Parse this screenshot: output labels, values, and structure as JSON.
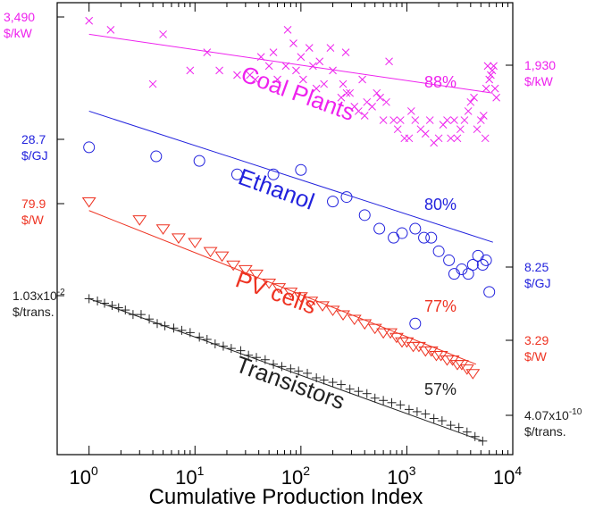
{
  "chart_data": {
    "type": "scatter",
    "title": "",
    "xlabel": "Cumulative Production Index",
    "ylabel": "",
    "x_scale": "log",
    "xlim": [
      0.5,
      10000
    ],
    "x_ticks": [
      {
        "base": "10",
        "exp": "0"
      },
      {
        "base": "10",
        "exp": "1"
      },
      {
        "base": "10",
        "exp": "2"
      },
      {
        "base": "10",
        "exp": "3"
      },
      {
        "base": "10",
        "exp": "4"
      }
    ],
    "series": [
      {
        "name": "Coal Plants",
        "marker": "x",
        "color": "#ee22ee",
        "progress_ratio": "88%",
        "start_label": [
          "3,490",
          "$/kW"
        ],
        "end_label": [
          "1,930",
          "$/kW"
        ],
        "fit": {
          "x": [
            1,
            6500
          ],
          "y_frac": [
            0.07,
            0.2
          ]
        },
        "points": [
          [
            1,
            0.04
          ],
          [
            1.6,
            0.06
          ],
          [
            5,
            0.07
          ],
          [
            4,
            0.18
          ],
          [
            9,
            0.15
          ],
          [
            13,
            0.11
          ],
          [
            17,
            0.15
          ],
          [
            25,
            0.16
          ],
          [
            33,
            0.16
          ],
          [
            37,
            0.17
          ],
          [
            42,
            0.12
          ],
          [
            50,
            0.14
          ],
          [
            55,
            0.11
          ],
          [
            60,
            0.17
          ],
          [
            72,
            0.14
          ],
          [
            75,
            0.06
          ],
          [
            85,
            0.09
          ],
          [
            90,
            0.15
          ],
          [
            100,
            0.12
          ],
          [
            105,
            0.17
          ],
          [
            120,
            0.1
          ],
          [
            130,
            0.14
          ],
          [
            140,
            0.19
          ],
          [
            150,
            0.13
          ],
          [
            165,
            0.18
          ],
          [
            190,
            0.1
          ],
          [
            200,
            0.15
          ],
          [
            240,
            0.21
          ],
          [
            250,
            0.18
          ],
          [
            265,
            0.11
          ],
          [
            270,
            0.2
          ],
          [
            290,
            0.2
          ],
          [
            320,
            0.23
          ],
          [
            350,
            0.24
          ],
          [
            380,
            0.17
          ],
          [
            400,
            0.25
          ],
          [
            420,
            0.22
          ],
          [
            470,
            0.23
          ],
          [
            520,
            0.2
          ],
          [
            560,
            0.21
          ],
          [
            600,
            0.26
          ],
          [
            640,
            0.22
          ],
          [
            680,
            0.13
          ],
          [
            750,
            0.26
          ],
          [
            820,
            0.28
          ],
          [
            870,
            0.26
          ],
          [
            950,
            0.3
          ],
          [
            1050,
            0.3
          ],
          [
            1100,
            0.24
          ],
          [
            1200,
            0.26
          ],
          [
            1350,
            0.28
          ],
          [
            1500,
            0.29
          ],
          [
            1650,
            0.26
          ],
          [
            1800,
            0.31
          ],
          [
            2000,
            0.3
          ],
          [
            2200,
            0.27
          ],
          [
            2400,
            0.26
          ],
          [
            2600,
            0.3
          ],
          [
            2800,
            0.26
          ],
          [
            3000,
            0.3
          ],
          [
            3200,
            0.28
          ],
          [
            3500,
            0.26
          ],
          [
            3800,
            0.24
          ],
          [
            4000,
            0.22
          ],
          [
            4300,
            0.21
          ],
          [
            4600,
            0.28
          ],
          [
            5000,
            0.26
          ],
          [
            5300,
            0.25
          ],
          [
            5600,
            0.19
          ],
          [
            5800,
            0.14
          ],
          [
            6000,
            0.17
          ],
          [
            6200,
            0.16
          ],
          [
            6400,
            0.15
          ],
          [
            6600,
            0.14
          ],
          [
            6800,
            0.19
          ],
          [
            7000,
            0.21
          ],
          [
            5500,
            0.3
          ]
        ]
      },
      {
        "name": "Ethanol",
        "marker": "circle",
        "color": "#2222dd",
        "progress_ratio": "80%",
        "start_label": [
          "28.7",
          "$/GJ"
        ],
        "end_label": [
          "8.25",
          "$/GJ"
        ],
        "fit": {
          "x": [
            1,
            6500
          ],
          "y_frac": [
            0.24,
            0.53
          ]
        },
        "points": [
          [
            1,
            0.32
          ],
          [
            4.3,
            0.34
          ],
          [
            11,
            0.35
          ],
          [
            25,
            0.38
          ],
          [
            55,
            0.38
          ],
          [
            100,
            0.37
          ],
          [
            200,
            0.44
          ],
          [
            270,
            0.43
          ],
          [
            400,
            0.47
          ],
          [
            550,
            0.5
          ],
          [
            750,
            0.52
          ],
          [
            900,
            0.51
          ],
          [
            1200,
            0.5
          ],
          [
            1450,
            0.52
          ],
          [
            1700,
            0.52
          ],
          [
            2000,
            0.55
          ],
          [
            2500,
            0.57
          ],
          [
            2800,
            0.6
          ],
          [
            3300,
            0.59
          ],
          [
            3800,
            0.6
          ],
          [
            4200,
            0.58
          ],
          [
            4700,
            0.56
          ],
          [
            5200,
            0.58
          ],
          [
            5600,
            0.57
          ],
          [
            6000,
            0.64
          ],
          [
            1200,
            0.71
          ]
        ]
      },
      {
        "name": "PV cells",
        "marker": "triangle-down",
        "color": "#ee3322",
        "progress_ratio": "77%",
        "start_label": [
          "79.9",
          "$/W"
        ],
        "end_label": [
          "3.29",
          "$/W"
        ],
        "fit": {
          "x": [
            1,
            4500
          ],
          "y_frac": [
            0.46,
            0.8
          ]
        },
        "points": [
          [
            1,
            0.44
          ],
          [
            3,
            0.48
          ],
          [
            5,
            0.5
          ],
          [
            7,
            0.52
          ],
          [
            10,
            0.53
          ],
          [
            14,
            0.55
          ],
          [
            18,
            0.56
          ],
          [
            23,
            0.58
          ],
          [
            30,
            0.59
          ],
          [
            38,
            0.6
          ],
          [
            50,
            0.62
          ],
          [
            62,
            0.63
          ],
          [
            80,
            0.64
          ],
          [
            100,
            0.65
          ],
          [
            125,
            0.66
          ],
          [
            160,
            0.67
          ],
          [
            200,
            0.68
          ],
          [
            250,
            0.69
          ],
          [
            320,
            0.7
          ],
          [
            400,
            0.71
          ],
          [
            500,
            0.72
          ],
          [
            600,
            0.73
          ],
          [
            700,
            0.73
          ],
          [
            800,
            0.74
          ],
          [
            900,
            0.75
          ],
          [
            1000,
            0.75
          ],
          [
            1150,
            0.76
          ],
          [
            1300,
            0.76
          ],
          [
            1500,
            0.77
          ],
          [
            1700,
            0.77
          ],
          [
            1900,
            0.78
          ],
          [
            2100,
            0.78
          ],
          [
            2400,
            0.79
          ],
          [
            2700,
            0.79
          ],
          [
            3000,
            0.8
          ],
          [
            3300,
            0.8
          ],
          [
            3700,
            0.81
          ],
          [
            4200,
            0.82
          ]
        ]
      },
      {
        "name": "Transistors",
        "marker": "plus",
        "color": "#222222",
        "progress_ratio": "57%",
        "start_label": [
          "1.03x10",
          "-2",
          "$/trans."
        ],
        "end_label": [
          "4.07x10",
          "-10",
          "$/trans."
        ],
        "fit": {
          "x": [
            1,
            5200
          ],
          "y_frac": [
            0.655,
            0.97
          ]
        },
        "points": [
          [
            1,
            0.655
          ],
          [
            1.2,
            0.66
          ],
          [
            1.4,
            0.665
          ],
          [
            1.65,
            0.67
          ],
          [
            1.9,
            0.675
          ],
          [
            2.2,
            0.68
          ],
          [
            2.6,
            0.69
          ],
          [
            3.1,
            0.69
          ],
          [
            3.7,
            0.7
          ],
          [
            4.4,
            0.71
          ],
          [
            5.2,
            0.715
          ],
          [
            6.3,
            0.72
          ],
          [
            7.5,
            0.725
          ],
          [
            9,
            0.73
          ],
          [
            11,
            0.74
          ],
          [
            13,
            0.745
          ],
          [
            15.5,
            0.755
          ],
          [
            18.5,
            0.76
          ],
          [
            22,
            0.765
          ],
          [
            27,
            0.77
          ],
          [
            32,
            0.78
          ],
          [
            38,
            0.785
          ],
          [
            46,
            0.79
          ],
          [
            55,
            0.8
          ],
          [
            66,
            0.805
          ],
          [
            80,
            0.81
          ],
          [
            95,
            0.815
          ],
          [
            115,
            0.82
          ],
          [
            140,
            0.83
          ],
          [
            165,
            0.835
          ],
          [
            200,
            0.84
          ],
          [
            240,
            0.845
          ],
          [
            290,
            0.855
          ],
          [
            350,
            0.86
          ],
          [
            420,
            0.865
          ],
          [
            500,
            0.875
          ],
          [
            600,
            0.88
          ],
          [
            720,
            0.885
          ],
          [
            870,
            0.89
          ],
          [
            1050,
            0.9
          ],
          [
            1250,
            0.905
          ],
          [
            1500,
            0.91
          ],
          [
            1800,
            0.92
          ],
          [
            2150,
            0.925
          ],
          [
            2600,
            0.935
          ],
          [
            3100,
            0.94
          ],
          [
            3700,
            0.95
          ],
          [
            4400,
            0.96
          ],
          [
            5200,
            0.97
          ]
        ]
      }
    ]
  }
}
